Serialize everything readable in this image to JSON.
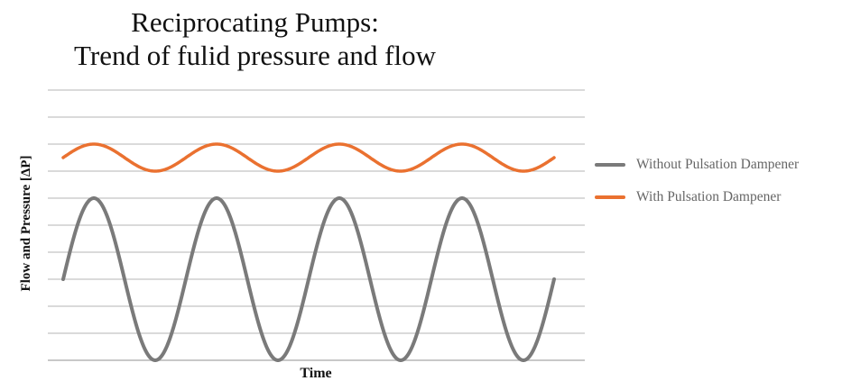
{
  "title_line1": "Reciprocating Pumps:",
  "title_line2": "Trend of  fulid pressure and flow",
  "chart_data": {
    "type": "line",
    "xlabel": "Time",
    "ylabel": "Flow and Pressure [ΔP]",
    "xlim": [
      0,
      4.0
    ],
    "ylim": [
      0,
      10
    ],
    "grid": true,
    "legend_position": "right",
    "series": [
      {
        "name": "Without Pulsation Dampener",
        "color": "#7a7a7a",
        "function": "sine",
        "center": 3,
        "amplitude": 3,
        "start_phase_deg": 0,
        "cycles": 4.0
      },
      {
        "name": "With Pulsation Dampener",
        "color": "#ea7130",
        "function": "sine",
        "center": 7.5,
        "amplitude": 0.5,
        "start_phase_deg": 0,
        "cycles": 4.0
      }
    ]
  },
  "legend": [
    {
      "label": "Without Pulsation Dampener",
      "color": "#7a7a7a"
    },
    {
      "label": "With Pulsation Dampener",
      "color": "#ea7130"
    }
  ]
}
